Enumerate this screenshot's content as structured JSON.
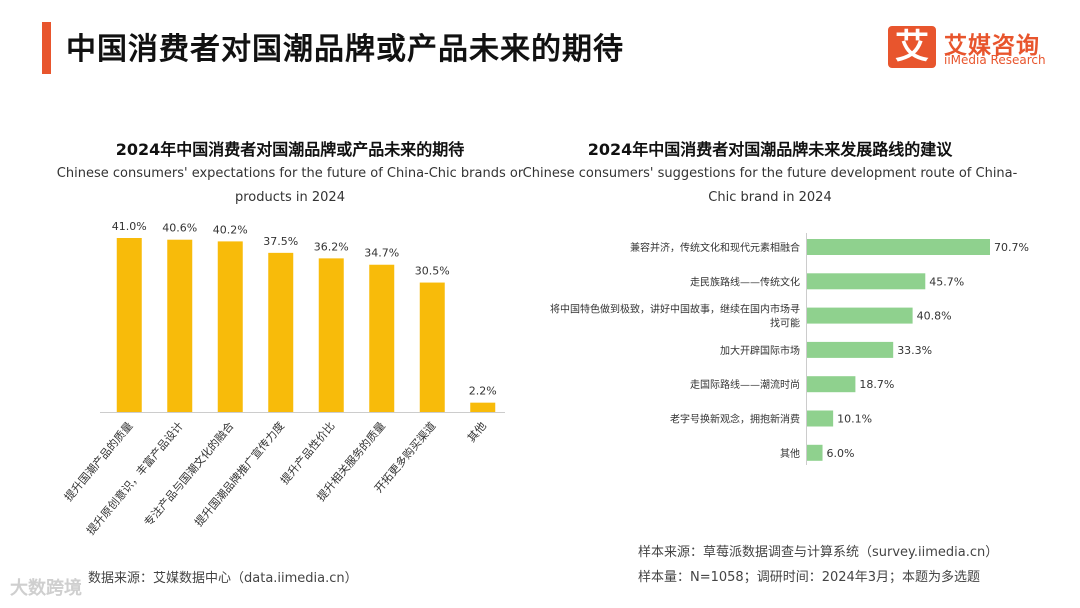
{
  "header": {
    "title": "中国消费者对国潮品牌或产品未来的期待",
    "logo_mark": "艾",
    "logo_cn": "艾媒咨询",
    "logo_en": "iiMedia Research"
  },
  "chart_data": [
    {
      "type": "bar",
      "title": "2024年中国消费者对国潮品牌或产品未来的期待",
      "subtitle_line1": "Chinese consumers' expectations for the future of China-Chic brands or",
      "subtitle_line2": "products in 2024",
      "categories": [
        "提升国潮产品的质量",
        "提升原创意识，丰富产品设计",
        "专注产品与国潮文化的融合",
        "提升国潮品牌推广宣传力度",
        "提升产品性价比",
        "提升相关服务的质量",
        "开拓更多购买渠道",
        "其他"
      ],
      "values": [
        41.0,
        40.6,
        40.2,
        37.5,
        36.2,
        34.7,
        30.5,
        2.2
      ],
      "value_labels": [
        "41.0%",
        "40.6%",
        "40.2%",
        "37.5%",
        "36.2%",
        "34.7%",
        "30.5%",
        "2.2%"
      ],
      "unit": "%",
      "ylim": [
        0,
        41
      ],
      "color": "#f8bb0a"
    },
    {
      "type": "bar",
      "orientation": "horizontal",
      "title": "2024年中国消费者对国潮品牌未来发展路线的建议",
      "subtitle_line1": "Chinese consumers' suggestions for the future development route of China-",
      "subtitle_line2": "Chic brand in 2024",
      "categories": [
        {
          "line1": "兼容并济，传统文化和现代元素相融合",
          "line2": ""
        },
        {
          "line1": "走民族路线——传统文化",
          "line2": ""
        },
        {
          "line1": "将中国特色做到极致，讲好中国故事，继续在国内市场寻",
          "line2": "找可能"
        },
        {
          "line1": "加大开辟国际市场",
          "line2": ""
        },
        {
          "line1": "走国际路线——潮流时尚",
          "line2": ""
        },
        {
          "line1": "老字号换新观念，拥抱新消费",
          "line2": ""
        },
        {
          "line1": "其他",
          "line2": ""
        }
      ],
      "values": [
        70.7,
        45.7,
        40.8,
        33.3,
        18.7,
        10.1,
        6.0
      ],
      "value_labels": [
        "70.7%",
        "45.7%",
        "40.8%",
        "33.3%",
        "18.7%",
        "10.1%",
        "6.0%"
      ],
      "unit": "%",
      "xlim": [
        0,
        70.7
      ],
      "color": "#8fd18e"
    }
  ],
  "footer": {
    "left_source": "数据来源：艾媒数据中心（data.iimedia.cn）",
    "right_source": "样本来源：草莓派数据调查与计算系统（survey.iimedia.cn）",
    "right_sample": "样本量：N=1058；调研时间：2024年3月；本题为多选题"
  },
  "watermark": "大数跨境"
}
